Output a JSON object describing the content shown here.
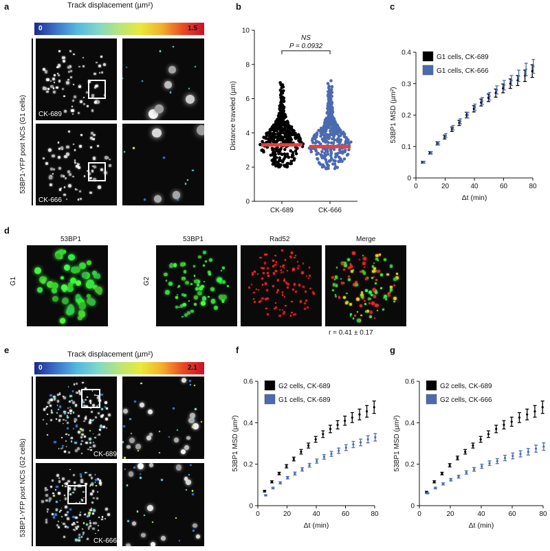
{
  "panels": {
    "a": {
      "letter": "a",
      "colorbar_title": "Track displacement (µm²)",
      "colorbar_min": "0",
      "colorbar_max": "1.5",
      "side_label": "53BP1-YFP post NCS (G1 cells)",
      "top_tag": "CK-689",
      "bottom_tag": "CK-666"
    },
    "b": {
      "letter": "b",
      "ylabel": "Distance traveled (µm)",
      "ns_text": "NS",
      "p_text": "P = 0.0932",
      "categories": [
        "CK-689",
        "CK-666"
      ],
      "yticks": [
        "0",
        "2",
        "4",
        "6",
        "8",
        "10"
      ]
    },
    "c": {
      "letter": "c"
    },
    "d": {
      "letter": "d",
      "g1_title": "53BP1",
      "g2_titles": [
        "53BP1",
        "Rad52",
        "Merge"
      ],
      "row_g1": "G1",
      "row_g2": "G2",
      "correlation": "r = 0.41 ± 0.17"
    },
    "e": {
      "letter": "e",
      "colorbar_title": "Track displacement (µm²)",
      "colorbar_min": "0",
      "colorbar_max": "2.1",
      "side_label": "53BP1-YFP post NCS (G2 cells)",
      "top_tag": "CK-689",
      "bottom_tag": "CK-666"
    },
    "f": {
      "letter": "f"
    },
    "g": {
      "letter": "g"
    }
  },
  "chart_data": [
    {
      "panel": "b",
      "type": "scatter",
      "ylabel": "Distance traveled (µm)",
      "ylim": [
        0,
        10
      ],
      "categories": [
        "CK-689",
        "CK-666"
      ],
      "means": [
        3.3,
        3.2
      ],
      "ranges": [
        [
          1.4,
          7.3
        ],
        [
          1.6,
          7.6
        ]
      ],
      "annotation": "NS  P = 0.0932",
      "colors": [
        "#000000",
        "#4a6bb0"
      ],
      "mean_color": "#e8403a"
    },
    {
      "panel": "c",
      "type": "line",
      "xlabel": "Δt (min)",
      "ylabel": "53BP1 MSD (µm²)",
      "xlim": [
        0,
        80
      ],
      "ylim": [
        0,
        0.4
      ],
      "xticks": [
        0,
        20,
        40,
        60,
        80
      ],
      "yticks": [
        0,
        0.1,
        0.2,
        0.3,
        0.4
      ],
      "x": [
        5,
        10,
        15,
        20,
        25,
        30,
        35,
        40,
        45,
        50,
        55,
        60,
        65,
        70,
        75,
        80
      ],
      "series": [
        {
          "name": "G1 cells, CK-689",
          "color": "#000000",
          "values": [
            0.05,
            0.08,
            0.11,
            0.13,
            0.155,
            0.175,
            0.2,
            0.22,
            0.24,
            0.255,
            0.27,
            0.285,
            0.3,
            0.31,
            0.325,
            0.34
          ],
          "err": [
            0.003,
            0.004,
            0.005,
            0.006,
            0.007,
            0.008,
            0.009,
            0.01,
            0.011,
            0.012,
            0.013,
            0.014,
            0.015,
            0.016,
            0.018,
            0.02
          ]
        },
        {
          "name": "G1 cells, CK-666",
          "color": "#4a6bb0",
          "values": [
            0.05,
            0.08,
            0.11,
            0.135,
            0.16,
            0.18,
            0.2,
            0.225,
            0.245,
            0.26,
            0.28,
            0.295,
            0.31,
            0.325,
            0.345,
            0.355
          ],
          "err": [
            0.003,
            0.004,
            0.005,
            0.006,
            0.007,
            0.008,
            0.009,
            0.01,
            0.011,
            0.012,
            0.013,
            0.015,
            0.016,
            0.018,
            0.02,
            0.022
          ]
        }
      ]
    },
    {
      "panel": "f",
      "type": "line",
      "xlabel": "Δt (min)",
      "ylabel": "53BP1 MSD (µm²)",
      "xlim": [
        0,
        80
      ],
      "ylim": [
        0,
        0.6
      ],
      "xticks": [
        0,
        20,
        40,
        60,
        80
      ],
      "yticks": [
        0,
        0.2,
        0.4,
        0.6
      ],
      "x": [
        5,
        10,
        15,
        20,
        25,
        30,
        35,
        40,
        45,
        50,
        55,
        60,
        65,
        70,
        75,
        80
      ],
      "series": [
        {
          "name": "G2 cells, CK-689",
          "color": "#000000",
          "values": [
            0.07,
            0.115,
            0.155,
            0.19,
            0.225,
            0.26,
            0.29,
            0.32,
            0.345,
            0.37,
            0.39,
            0.41,
            0.425,
            0.44,
            0.455,
            0.475
          ],
          "err": [
            0.004,
            0.005,
            0.006,
            0.008,
            0.009,
            0.011,
            0.012,
            0.014,
            0.016,
            0.018,
            0.02,
            0.022,
            0.024,
            0.026,
            0.028,
            0.03
          ]
        },
        {
          "name": "G1 cells, CK-689",
          "color": "#4a6bb0",
          "values": [
            0.05,
            0.085,
            0.11,
            0.135,
            0.155,
            0.175,
            0.195,
            0.215,
            0.235,
            0.25,
            0.265,
            0.28,
            0.295,
            0.305,
            0.32,
            0.33
          ],
          "err": [
            0.003,
            0.004,
            0.005,
            0.006,
            0.007,
            0.008,
            0.009,
            0.01,
            0.011,
            0.012,
            0.013,
            0.014,
            0.015,
            0.016,
            0.017,
            0.018
          ]
        }
      ]
    },
    {
      "panel": "g",
      "type": "line",
      "xlabel": "Δt (min)",
      "ylabel": "53BP1 MSD (µm²)",
      "xlim": [
        0,
        80
      ],
      "ylim": [
        0,
        0.6
      ],
      "xticks": [
        0,
        20,
        40,
        60,
        80
      ],
      "yticks": [
        0,
        0.2,
        0.4,
        0.6
      ],
      "x": [
        5,
        10,
        15,
        20,
        25,
        30,
        35,
        40,
        45,
        50,
        55,
        60,
        65,
        70,
        75,
        80
      ],
      "series": [
        {
          "name": "G2 cells, CK-689",
          "color": "#000000",
          "values": [
            0.065,
            0.115,
            0.155,
            0.195,
            0.23,
            0.26,
            0.29,
            0.32,
            0.345,
            0.37,
            0.39,
            0.405,
            0.425,
            0.44,
            0.455,
            0.475
          ],
          "err": [
            0.004,
            0.005,
            0.006,
            0.008,
            0.009,
            0.011,
            0.012,
            0.014,
            0.016,
            0.018,
            0.02,
            0.022,
            0.024,
            0.026,
            0.028,
            0.03
          ]
        },
        {
          "name": "G2 cells, CK-666",
          "color": "#4a6bb0",
          "values": [
            0.06,
            0.085,
            0.105,
            0.125,
            0.14,
            0.16,
            0.175,
            0.19,
            0.205,
            0.215,
            0.23,
            0.24,
            0.25,
            0.26,
            0.275,
            0.285
          ],
          "err": [
            0.003,
            0.004,
            0.005,
            0.006,
            0.007,
            0.008,
            0.009,
            0.01,
            0.011,
            0.012,
            0.013,
            0.014,
            0.015,
            0.016,
            0.017,
            0.018
          ]
        }
      ]
    }
  ]
}
